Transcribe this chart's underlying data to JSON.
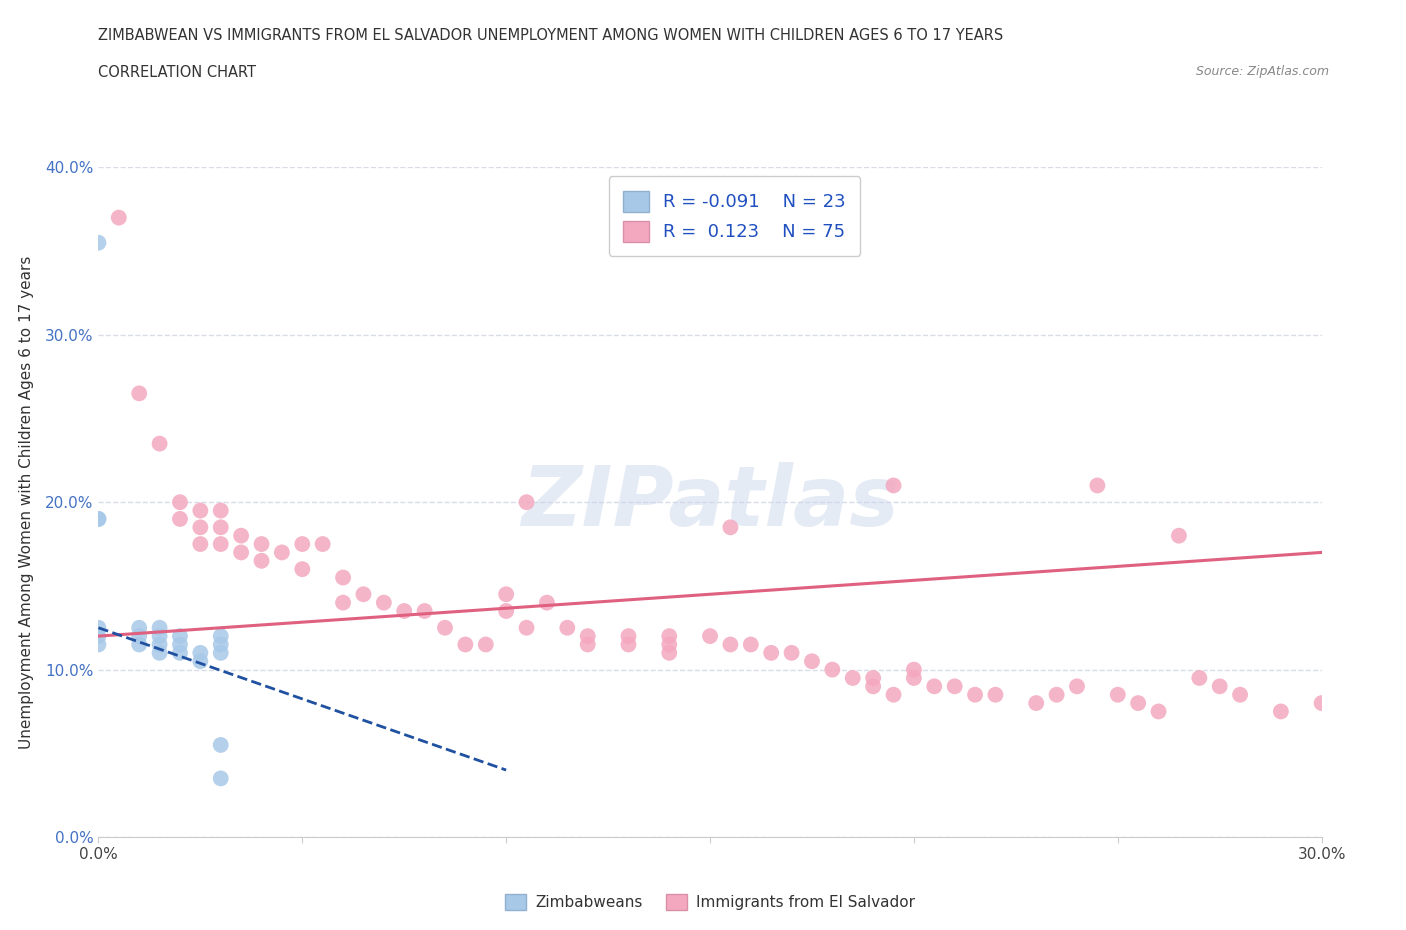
{
  "title_line1": "ZIMBABWEAN VS IMMIGRANTS FROM EL SALVADOR UNEMPLOYMENT AMONG WOMEN WITH CHILDREN AGES 6 TO 17 YEARS",
  "title_line2": "CORRELATION CHART",
  "source": "Source: ZipAtlas.com",
  "ylabel": "Unemployment Among Women with Children Ages 6 to 17 years",
  "xlim": [
    0.0,
    0.3
  ],
  "ylim": [
    0.0,
    0.4
  ],
  "xticks": [
    0.0,
    0.05,
    0.1,
    0.15,
    0.2,
    0.25,
    0.3
  ],
  "yticks": [
    0.0,
    0.1,
    0.2,
    0.3,
    0.4
  ],
  "watermark": "ZIPatlas",
  "blue_color": "#a8c8e8",
  "pink_color": "#f4a8c0",
  "blue_line_color": "#2050a0",
  "pink_line_color": "#e06080",
  "zimbabwean_x": [
    0.0,
    0.0,
    0.0,
    0.0,
    0.0,
    0.0,
    0.01,
    0.01,
    0.01,
    0.015,
    0.015,
    0.015,
    0.015,
    0.02,
    0.02,
    0.02,
    0.025,
    0.025,
    0.03,
    0.03,
    0.03,
    0.03,
    0.03
  ],
  "zimbabwean_y": [
    0.355,
    0.19,
    0.19,
    0.125,
    0.12,
    0.115,
    0.125,
    0.12,
    0.115,
    0.125,
    0.12,
    0.115,
    0.11,
    0.12,
    0.115,
    0.11,
    0.11,
    0.105,
    0.12,
    0.115,
    0.11,
    0.055,
    0.035
  ],
  "elsalvador_x": [
    0.005,
    0.01,
    0.015,
    0.02,
    0.02,
    0.025,
    0.025,
    0.025,
    0.03,
    0.03,
    0.03,
    0.035,
    0.035,
    0.04,
    0.04,
    0.045,
    0.05,
    0.05,
    0.06,
    0.06,
    0.065,
    0.07,
    0.075,
    0.08,
    0.085,
    0.09,
    0.095,
    0.1,
    0.1,
    0.105,
    0.11,
    0.115,
    0.12,
    0.12,
    0.13,
    0.13,
    0.14,
    0.14,
    0.14,
    0.15,
    0.155,
    0.16,
    0.165,
    0.17,
    0.175,
    0.18,
    0.185,
    0.19,
    0.19,
    0.195,
    0.2,
    0.2,
    0.205,
    0.21,
    0.215,
    0.22,
    0.23,
    0.235,
    0.24,
    0.25,
    0.255,
    0.26,
    0.27,
    0.275,
    0.28,
    0.29,
    0.3,
    0.055,
    0.105,
    0.155,
    0.195,
    0.245,
    0.265
  ],
  "elsalvador_y": [
    0.37,
    0.265,
    0.235,
    0.2,
    0.19,
    0.195,
    0.185,
    0.175,
    0.195,
    0.185,
    0.175,
    0.18,
    0.17,
    0.175,
    0.165,
    0.17,
    0.175,
    0.16,
    0.155,
    0.14,
    0.145,
    0.14,
    0.135,
    0.135,
    0.125,
    0.115,
    0.115,
    0.145,
    0.135,
    0.125,
    0.14,
    0.125,
    0.12,
    0.115,
    0.12,
    0.115,
    0.12,
    0.115,
    0.11,
    0.12,
    0.115,
    0.115,
    0.11,
    0.11,
    0.105,
    0.1,
    0.095,
    0.095,
    0.09,
    0.085,
    0.1,
    0.095,
    0.09,
    0.09,
    0.085,
    0.085,
    0.08,
    0.085,
    0.09,
    0.085,
    0.08,
    0.075,
    0.095,
    0.09,
    0.085,
    0.075,
    0.08,
    0.175,
    0.2,
    0.185,
    0.21,
    0.21,
    0.18
  ],
  "sal_trend_x": [
    0.0,
    0.3
  ],
  "sal_trend_y": [
    0.12,
    0.17
  ],
  "zim_trend_x": [
    0.0,
    0.1
  ],
  "zim_trend_y": [
    0.125,
    0.04
  ],
  "grid_color": "#d8dce8",
  "bg_color": "#ffffff"
}
